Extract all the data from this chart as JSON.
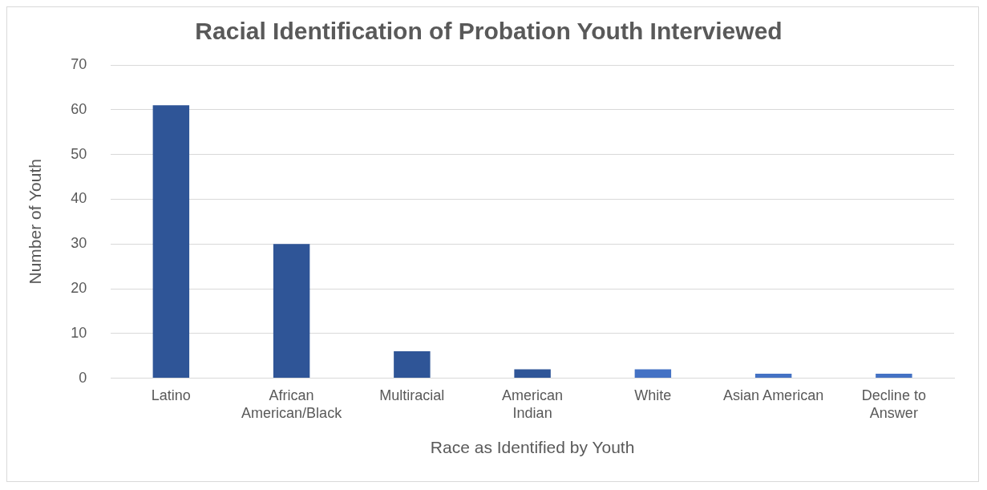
{
  "chart_data": {
    "type": "bar",
    "title": "Racial Identification of Probation Youth Interviewed",
    "xlabel": "Race as Identified by Youth",
    "ylabel": "Number of Youth",
    "categories": [
      "Latino",
      "African American/Black",
      "Multiracial",
      "American Indian",
      "White",
      "Asian American",
      "Decline to Answer"
    ],
    "values": [
      61,
      30,
      6,
      2,
      2,
      1,
      1
    ],
    "colors": [
      "#2f5597",
      "#2f5597",
      "#2f5597",
      "#2f5597",
      "#4472c4",
      "#4472c4",
      "#4472c4"
    ],
    "ylim": [
      0,
      70
    ],
    "yticks": [
      0,
      10,
      20,
      30,
      40,
      50,
      60,
      70
    ],
    "grid": "y",
    "legend": false
  }
}
